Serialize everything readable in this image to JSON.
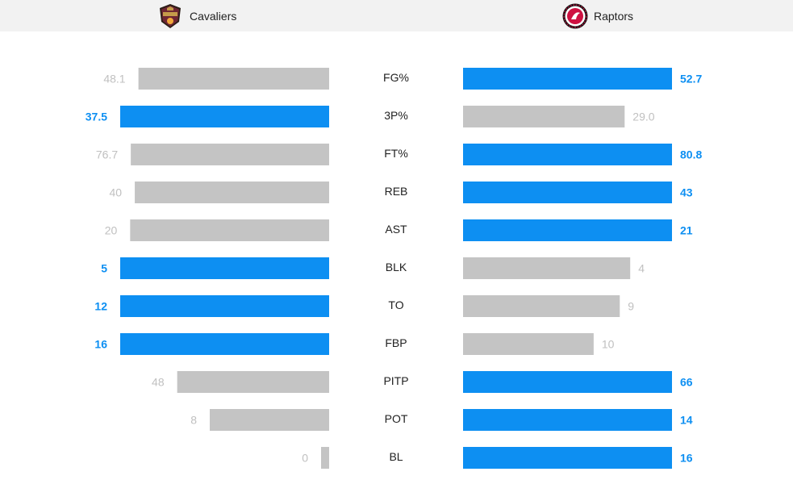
{
  "header": {
    "left_team": {
      "name": "Cavaliers",
      "logo_icon": "cavaliers-logo-icon"
    },
    "right_team": {
      "name": "Raptors",
      "logo_icon": "raptors-logo-icon"
    }
  },
  "colors": {
    "highlight": "#0d8ff2",
    "muted_bar": "#c4c4c4",
    "muted_text": "#c0c0c0",
    "header_bg": "#f2f2f2"
  },
  "chart_data": {
    "type": "bar",
    "orientation": "horizontal-diverging",
    "categories": [
      "FG%",
      "3P%",
      "FT%",
      "REB",
      "AST",
      "BLK",
      "TO",
      "FBP",
      "PITP",
      "POT",
      "BL"
    ],
    "series": [
      {
        "name": "Cavaliers",
        "values": [
          48.1,
          37.5,
          76.7,
          40,
          20,
          5,
          12,
          16,
          48,
          8,
          0
        ],
        "labels": [
          "48.1",
          "37.5",
          "76.7",
          "40",
          "20",
          "5",
          "12",
          "16",
          "48",
          "8",
          "0"
        ],
        "highlighted": [
          false,
          true,
          false,
          false,
          false,
          true,
          true,
          true,
          false,
          false,
          false
        ]
      },
      {
        "name": "Raptors",
        "values": [
          52.7,
          29.0,
          80.8,
          43,
          21,
          4,
          9,
          10,
          66,
          14,
          16
        ],
        "labels": [
          "52.7",
          "29.0",
          "80.8",
          "43",
          "21",
          "4",
          "9",
          "10",
          "66",
          "14",
          "16"
        ],
        "highlighted": [
          true,
          false,
          true,
          true,
          true,
          false,
          false,
          false,
          true,
          true,
          true
        ]
      }
    ]
  }
}
